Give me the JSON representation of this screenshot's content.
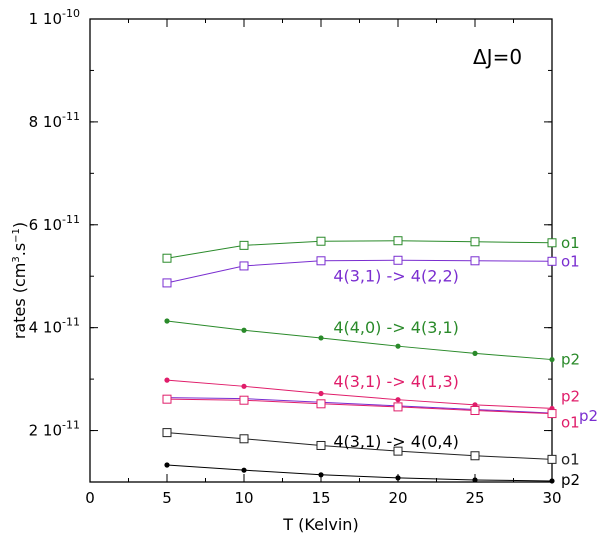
{
  "chart_data": {
    "type": "line",
    "title": "ΔJ=0",
    "xlabel": "T (Kelvin)",
    "ylabel": "rates (cm3.s−1)",
    "ylabel_parts": {
      "pre": "rates (cm",
      "sup1": "3",
      "mid": ".s",
      "sup2": "−1",
      "post": ")"
    },
    "xlim": [
      0,
      30
    ],
    "ylim": [
      1e-11,
      1e-10
    ],
    "x_ticks": [
      {
        "value": 0,
        "label": "0"
      },
      {
        "value": 5,
        "label": "5"
      },
      {
        "value": 10,
        "label": "10"
      },
      {
        "value": 15,
        "label": "15"
      },
      {
        "value": 20,
        "label": "20"
      },
      {
        "value": 25,
        "label": "25"
      },
      {
        "value": 30,
        "label": "30"
      }
    ],
    "y_ticks": [
      {
        "value": 2e-11,
        "mantissa": "2",
        "base": "10",
        "exp": "-11"
      },
      {
        "value": 4e-11,
        "mantissa": "4",
        "base": "10",
        "exp": "-11"
      },
      {
        "value": 6e-11,
        "mantissa": "6",
        "base": "10",
        "exp": "-11"
      },
      {
        "value": 8e-11,
        "mantissa": "8",
        "base": "10",
        "exp": "-11"
      },
      {
        "value": 1e-10,
        "mantissa": "1",
        "base": "10",
        "exp": "-10"
      }
    ],
    "series": [
      {
        "name": "4(4,0) -> 4(3,1) o1",
        "color": "#2a8a2a",
        "marker": "square",
        "end_label": "o1",
        "x": [
          5,
          10,
          15,
          20,
          25,
          30
        ],
        "y": [
          5.35e-11,
          5.6e-11,
          5.68e-11,
          5.69e-11,
          5.67e-11,
          5.65e-11
        ]
      },
      {
        "name": "4(3,1) -> 4(2,2) o1",
        "color": "#7a2ed0",
        "marker": "square",
        "end_label": "o1",
        "x": [
          5,
          10,
          15,
          20,
          25,
          30
        ],
        "y": [
          4.87e-11,
          5.2e-11,
          5.3e-11,
          5.31e-11,
          5.3e-11,
          5.29e-11
        ]
      },
      {
        "name": "4(4,0) -> 4(3,1) p2",
        "color": "#2a8a2a",
        "marker": "dot",
        "end_label": "p2",
        "x": [
          5,
          10,
          15,
          20,
          25,
          30
        ],
        "y": [
          4.13e-11,
          3.95e-11,
          3.8e-11,
          3.64e-11,
          3.5e-11,
          3.38e-11
        ]
      },
      {
        "name": "4(3,1) -> 4(1,3) p2",
        "color": "#e01d6a",
        "marker": "dot",
        "end_label": "p2",
        "x": [
          5,
          10,
          15,
          20,
          25,
          30
        ],
        "y": [
          2.98e-11,
          2.86e-11,
          2.72e-11,
          2.6e-11,
          2.5e-11,
          2.43e-11
        ]
      },
      {
        "name": "4(3,1) -> 4(2,2) p2",
        "color": "#7a2ed0",
        "marker": "dot",
        "end_label": "p2",
        "x": [
          5,
          10,
          15,
          20,
          25,
          30
        ],
        "y": [
          2.64e-11,
          2.62e-11,
          2.55e-11,
          2.48e-11,
          2.41e-11,
          2.34e-11
        ]
      },
      {
        "name": "4(3,1) -> 4(1,3) o1",
        "color": "#e01d6a",
        "marker": "square",
        "end_label": "o1",
        "x": [
          5,
          10,
          15,
          20,
          25,
          30
        ],
        "y": [
          2.61e-11,
          2.59e-11,
          2.52e-11,
          2.46e-11,
          2.39e-11,
          2.33e-11
        ]
      },
      {
        "name": "4(3,1) -> 4(0,4) o1",
        "color": "#222222",
        "marker": "square",
        "end_label": "o1",
        "x": [
          5,
          10,
          15,
          20,
          25,
          30
        ],
        "y": [
          1.96e-11,
          1.84e-11,
          1.71e-11,
          1.6e-11,
          1.51e-11,
          1.44e-11
        ]
      },
      {
        "name": "4(3,1) -> 4(0,4) p2",
        "color": "#000000",
        "marker": "dot",
        "end_label": "p2",
        "x": [
          5,
          10,
          15,
          20,
          25,
          30
        ],
        "y": [
          1.33e-11,
          1.23e-11,
          1.14e-11,
          1.08e-11,
          1.04e-11,
          1.02e-11
        ]
      }
    ],
    "annotations": [
      {
        "text": "4(3,1)  ->  4(2,2)",
        "color": "#7a2ed0",
        "x": 15.8,
        "y": 4.9e-11
      },
      {
        "text": "4(4,0)  ->  4(3,1)",
        "color": "#2a8a2a",
        "x": 15.8,
        "y": 3.9e-11
      },
      {
        "text": "4(3,1)  ->  4(1,3)",
        "color": "#e01d6a",
        "x": 15.8,
        "y": 2.85e-11
      },
      {
        "text": "4(3,1)  ->  4(0,4)",
        "color": "#000000",
        "x": 15.8,
        "y": 1.68e-11
      }
    ]
  }
}
